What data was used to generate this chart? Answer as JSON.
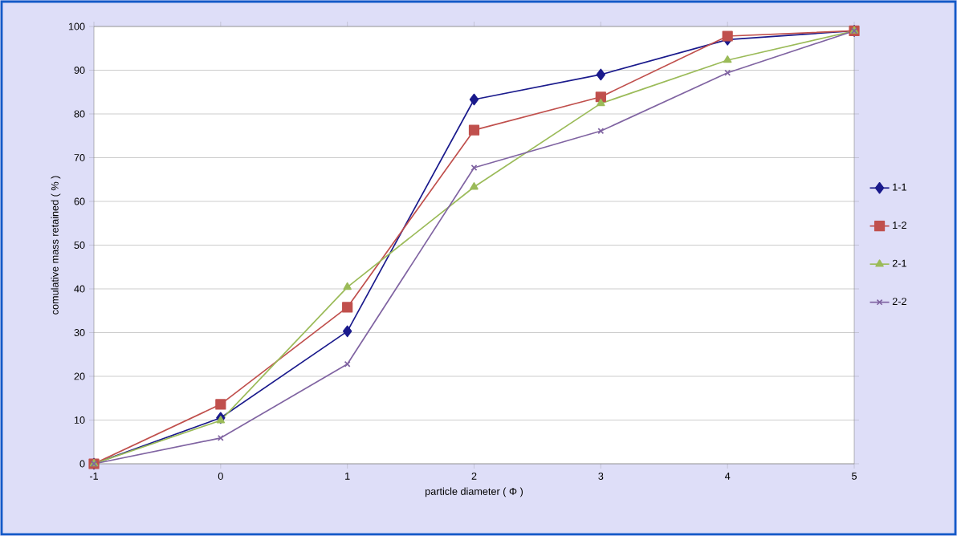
{
  "chart_data": {
    "type": "line",
    "xlabel": "particle diameter ( Φ )",
    "ylabel": "comulative mass retained ( % )",
    "x": [
      -1,
      0,
      1,
      2,
      3,
      4,
      5
    ],
    "series": [
      {
        "name": "1-1",
        "color": "#1a1a8c",
        "marker": "diamond",
        "values": [
          0,
          10.5,
          30.3,
          83.3,
          89,
          97,
          99
        ]
      },
      {
        "name": "1-2",
        "color": "#c0504d",
        "marker": "square",
        "values": [
          0,
          13.6,
          35.8,
          76.3,
          83.9,
          97.8,
          99
        ]
      },
      {
        "name": "2-1",
        "color": "#9bbb59",
        "marker": "triangle",
        "values": [
          0,
          9.9,
          40.4,
          63.3,
          82.4,
          92.3,
          99
        ]
      },
      {
        "name": "2-2",
        "color": "#8064a2",
        "marker": "cross",
        "values": [
          0,
          5.9,
          22.8,
          67.7,
          76.1,
          89.4,
          99
        ]
      }
    ],
    "xlim": [
      -1,
      5
    ],
    "xticks": [
      -1,
      0,
      1,
      2,
      3,
      4,
      5
    ],
    "ylim": [
      0,
      100
    ],
    "yticks": [
      0,
      10,
      20,
      30,
      40,
      50,
      60,
      70,
      80,
      90,
      100
    ],
    "grid": "y",
    "legend": "right",
    "line_style": "solid"
  }
}
